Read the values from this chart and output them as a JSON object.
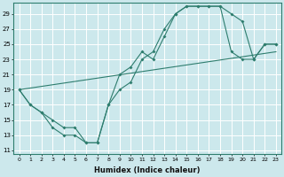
{
  "xlabel": "Humidex (Indice chaleur)",
  "bg_color": "#cce8ec",
  "grid_color": "#ffffff",
  "line_color": "#2e7d6e",
  "xlim": [
    -0.5,
    23.5
  ],
  "ylim": [
    10.5,
    30.5
  ],
  "xticks": [
    0,
    1,
    2,
    3,
    4,
    5,
    6,
    7,
    8,
    9,
    10,
    11,
    12,
    13,
    14,
    15,
    16,
    17,
    18,
    19,
    20,
    21,
    22,
    23
  ],
  "yticks": [
    11,
    13,
    15,
    17,
    19,
    21,
    23,
    25,
    27,
    29
  ],
  "line1_x": [
    0,
    1,
    2,
    3,
    4,
    5,
    6,
    7,
    8,
    9,
    10,
    11,
    12,
    13,
    14,
    15,
    16,
    17,
    18,
    19,
    20,
    21,
    22,
    23
  ],
  "line1_y": [
    19,
    17,
    16,
    14,
    13,
    13,
    12,
    12,
    17,
    21,
    22,
    24,
    23,
    26,
    29,
    30,
    30,
    30,
    30,
    29,
    28,
    23,
    25,
    25
  ],
  "line2_x": [
    0,
    1,
    2,
    3,
    4,
    5,
    6,
    7,
    8,
    9,
    10,
    11,
    12,
    13,
    14,
    15,
    16,
    17,
    18,
    19,
    20,
    21,
    22,
    23
  ],
  "line2_y": [
    19,
    17,
    16,
    15,
    14,
    14,
    12,
    12,
    17,
    19,
    20,
    23,
    24,
    27,
    29,
    30,
    30,
    30,
    30,
    24,
    23,
    23,
    25,
    25
  ],
  "line3_x": [
    0,
    23
  ],
  "line3_y": [
    19,
    24
  ]
}
